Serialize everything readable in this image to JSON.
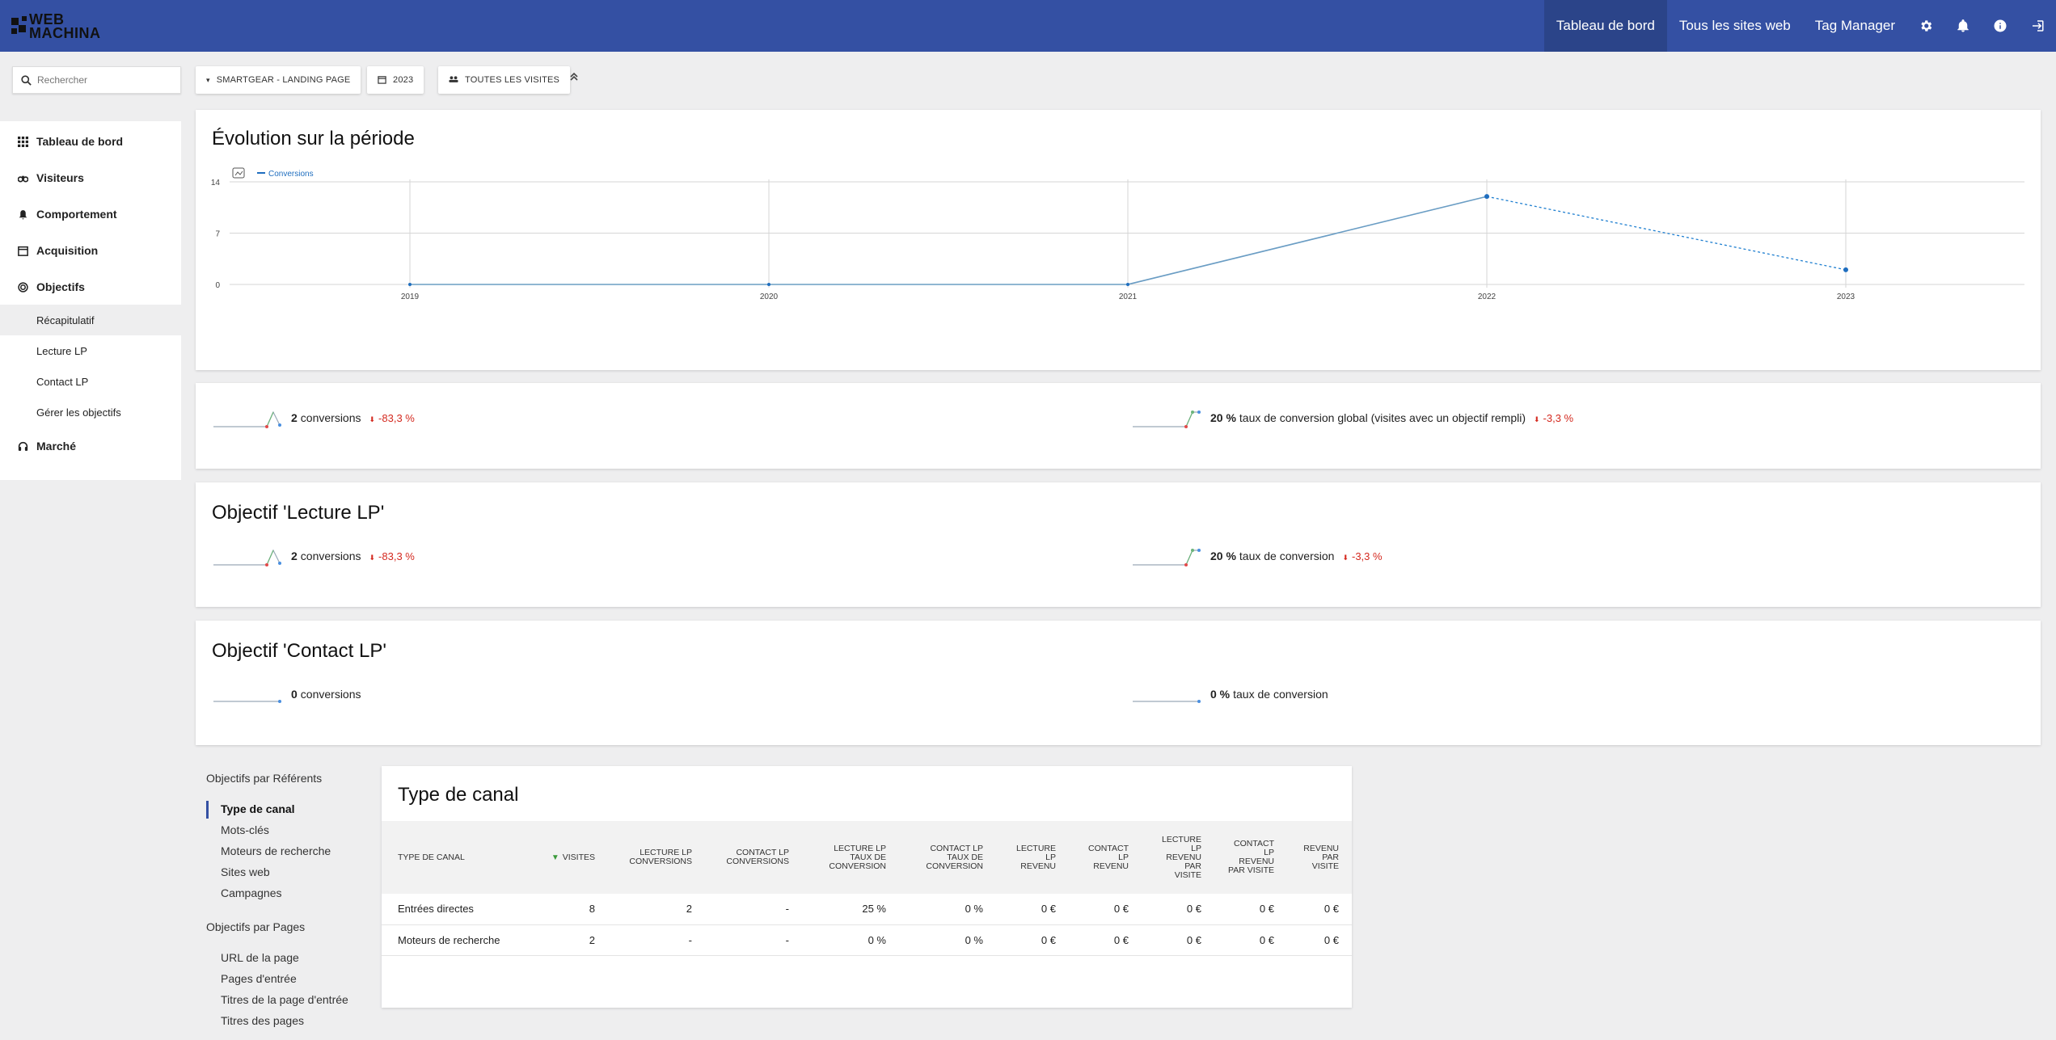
{
  "header": {
    "logo_text_1": "WEB",
    "logo_text_2": "MACHINA",
    "nav": [
      "Tableau de bord",
      "Tous les sites web",
      "Tag Manager"
    ]
  },
  "filters": {
    "search_placeholder": "Rechercher",
    "site": "SMARTGEAR - LANDING PAGE",
    "period": "2023",
    "segment": "TOUTES LES VISITES"
  },
  "sidebar": {
    "items": [
      {
        "label": "Tableau de bord",
        "icon": "grid-icon"
      },
      {
        "label": "Visiteurs",
        "icon": "binoculars-icon"
      },
      {
        "label": "Comportement",
        "icon": "bell-icon"
      },
      {
        "label": "Acquisition",
        "icon": "calendar-icon"
      },
      {
        "label": "Objectifs",
        "icon": "target-icon"
      }
    ],
    "subitems": [
      "Récapitulatif",
      "Lecture LP",
      "Contact LP",
      "Gérer les objectifs"
    ],
    "last_item": {
      "label": "Marché",
      "icon": "headset-icon"
    }
  },
  "evolution": {
    "title": "Évolution sur la période",
    "legend": "Conversions"
  },
  "chart_data": {
    "type": "line",
    "x": [
      "2019",
      "2020",
      "2021",
      "2022",
      "2023"
    ],
    "series": [
      {
        "name": "Conversions",
        "values": [
          0,
          0,
          0,
          12,
          2
        ]
      }
    ],
    "ylim": [
      0,
      14
    ],
    "yticks": [
      "0",
      "7",
      "14"
    ],
    "grid": true,
    "last_segment_dashed": true
  },
  "summary": {
    "left": {
      "value": "2",
      "label": "conversions",
      "delta": "-83,3 %"
    },
    "right": {
      "value": "20 %",
      "label": "taux de conversion global (visites avec un objectif rempli)",
      "delta": "-3,3 %"
    }
  },
  "goal_lecture": {
    "title": "Objectif 'Lecture LP'",
    "left": {
      "value": "2",
      "label": "conversions",
      "delta": "-83,3 %"
    },
    "right": {
      "value": "20 %",
      "label": "taux de conversion",
      "delta": "-3,3 %"
    }
  },
  "goal_contact": {
    "title": "Objectif 'Contact LP'",
    "left": {
      "value": "0",
      "label": "conversions"
    },
    "right": {
      "value": "0 %",
      "label": "taux de conversion"
    }
  },
  "referrers_nav": {
    "group1": "Objectifs par Référents",
    "links1": [
      "Type de canal",
      "Mots-clés",
      "Moteurs de recherche",
      "Sites web",
      "Campagnes"
    ],
    "group2": "Objectifs par Pages",
    "links2": [
      "URL de la page",
      "Pages d'entrée",
      "Titres de la page d'entrée",
      "Titres des pages"
    ]
  },
  "table": {
    "title": "Type de canal",
    "headers": [
      [
        "TYPE DE CANAL"
      ],
      [
        "VISITES"
      ],
      [
        "LECTURE LP",
        "CONVERSIONS"
      ],
      [
        "CONTACT LP",
        "CONVERSIONS"
      ],
      [
        "LECTURE LP",
        "TAUX DE",
        "CONVERSION"
      ],
      [
        "CONTACT LP",
        "TAUX DE",
        "CONVERSION"
      ],
      [
        "LECTURE",
        "LP",
        "REVENU"
      ],
      [
        "CONTACT",
        "LP",
        "REVENU"
      ],
      [
        "LECTURE",
        "LP",
        "REVENU",
        "PAR",
        "VISITE"
      ],
      [
        "CONTACT",
        "LP",
        "REVENU",
        "PAR VISITE"
      ],
      [
        "REVENU",
        "PAR",
        "VISITE"
      ]
    ],
    "rows": [
      [
        "Entrées directes",
        "8",
        "2",
        "-",
        "25 %",
        "0 %",
        "0 €",
        "0 €",
        "0 €",
        "0 €",
        "0 €"
      ],
      [
        "Moteurs de recherche",
        "2",
        "-",
        "-",
        "0 %",
        "0 %",
        "0 €",
        "0 €",
        "0 €",
        "0 €",
        "0 €"
      ]
    ]
  }
}
